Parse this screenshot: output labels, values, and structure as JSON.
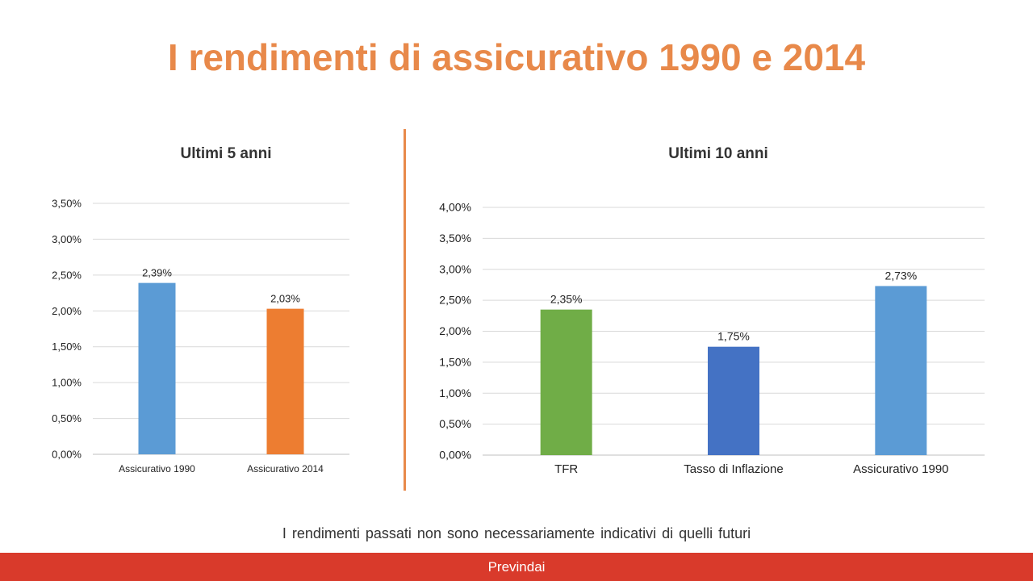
{
  "page": {
    "title": "I rendimenti di assicurativo 1990 e 2014",
    "footnote": "I rendimenti passati non sono necessariamente  indicativi di quelli futuri",
    "footer_label": "Previndai",
    "colors": {
      "title": "#e8894a",
      "divider": "#e8894a",
      "footer_bg": "#d93a2b"
    }
  },
  "chart_data": [
    {
      "type": "bar",
      "title": "Ultimi 5 anni",
      "categories": [
        "Assicurativo 1990",
        "Assicurativo 2014"
      ],
      "values": [
        2.39,
        2.03
      ],
      "data_labels": [
        "2,39%",
        "2,03%"
      ],
      "colors": [
        "#5b9bd5",
        "#ed7d31"
      ],
      "ylim": [
        0,
        3.5
      ],
      "yticks": [
        "0,00%",
        "0,50%",
        "1,00%",
        "1,50%",
        "2,00%",
        "2,50%",
        "3,00%",
        "3,50%"
      ],
      "xlabel": "",
      "ylabel": "",
      "grid": true,
      "legend": "none"
    },
    {
      "type": "bar",
      "title": "Ultimi 10 anni",
      "categories": [
        "TFR",
        "Tasso di Inflazione",
        "Assicurativo 1990"
      ],
      "values": [
        2.35,
        1.75,
        2.73
      ],
      "data_labels": [
        "2,35%",
        "1,75%",
        "2,73%"
      ],
      "colors": [
        "#70ad47",
        "#4472c4",
        "#5b9bd5"
      ],
      "ylim": [
        0,
        4.0
      ],
      "yticks": [
        "0,00%",
        "0,50%",
        "1,00%",
        "1,50%",
        "2,00%",
        "2,50%",
        "3,00%",
        "3,50%",
        "4,00%"
      ],
      "xlabel": "",
      "ylabel": "",
      "grid": true,
      "legend": "none"
    }
  ]
}
